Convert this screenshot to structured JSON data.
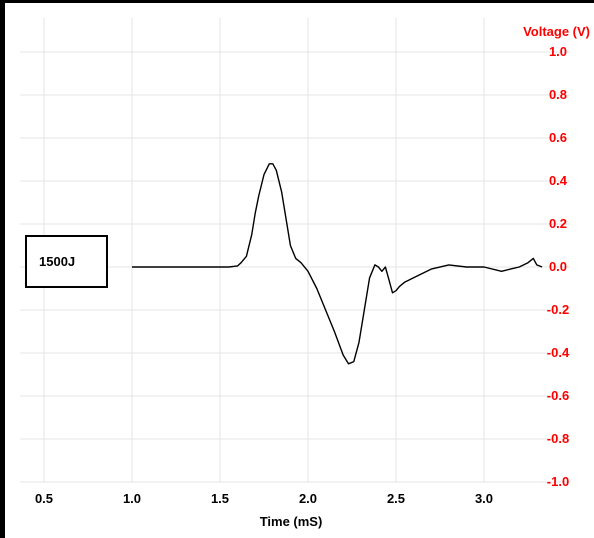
{
  "chart_data": {
    "type": "line",
    "title": "",
    "xlabel": "Time (mS)",
    "ylabel": "Voltage (V)",
    "xlim": [
      0.5,
      3.4
    ],
    "ylim": [
      -1.0,
      1.0
    ],
    "x_ticks": [
      "0.5",
      "1.0",
      "1.5",
      "2.0",
      "2.5",
      "3.0"
    ],
    "y_ticks": [
      "1.0",
      "0.8",
      "0.6",
      "0.4",
      "0.2",
      "0.0",
      "-0.2",
      "-0.4",
      "-0.6",
      "-0.8",
      "-1.0"
    ],
    "y_axis_side": "right",
    "y_axis_color": "#ff0000",
    "line_color": "#000000",
    "grid": true,
    "annotation": "1500J",
    "series": [
      {
        "x": [
          1.0,
          1.2,
          1.4,
          1.55,
          1.6,
          1.62,
          1.65,
          1.68,
          1.7,
          1.72,
          1.75,
          1.78,
          1.8,
          1.82,
          1.85,
          1.88,
          1.9,
          1.93,
          1.96,
          2.0,
          2.05,
          2.1,
          2.15,
          2.2,
          2.23,
          2.26,
          2.29,
          2.32,
          2.35,
          2.38,
          2.4,
          2.42,
          2.44,
          2.46,
          2.48,
          2.5,
          2.52,
          2.55,
          2.6,
          2.7,
          2.8,
          2.9,
          3.0,
          3.1,
          3.15,
          3.2,
          3.25,
          3.28,
          3.3,
          3.33
        ],
        "y": [
          0.0,
          0.0,
          0.0,
          0.0,
          0.005,
          0.02,
          0.05,
          0.15,
          0.25,
          0.33,
          0.43,
          0.48,
          0.48,
          0.45,
          0.35,
          0.2,
          0.1,
          0.04,
          0.02,
          -0.02,
          -0.1,
          -0.2,
          -0.3,
          -0.41,
          -0.45,
          -0.44,
          -0.35,
          -0.2,
          -0.05,
          0.01,
          0.0,
          -0.02,
          0.0,
          -0.06,
          -0.12,
          -0.11,
          -0.09,
          -0.07,
          -0.05,
          -0.01,
          0.01,
          0.0,
          0.0,
          -0.02,
          -0.01,
          0.0,
          0.02,
          0.04,
          0.01,
          0.0
        ]
      }
    ]
  }
}
